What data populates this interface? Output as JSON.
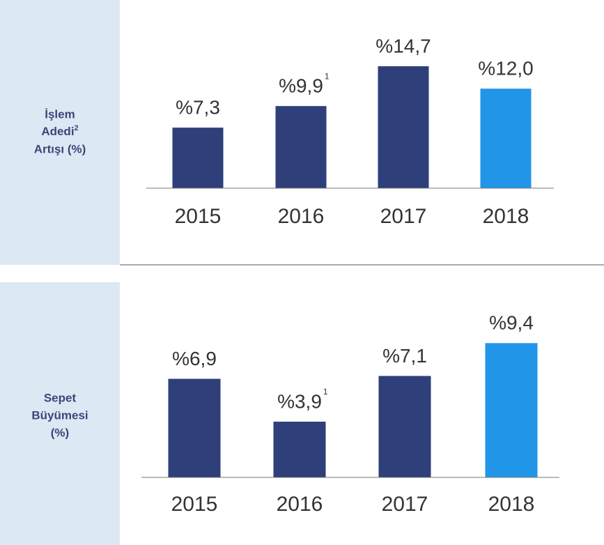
{
  "chart_data": [
    {
      "type": "bar",
      "title": [
        "İşlem",
        "Adedi",
        "Artışı (%)"
      ],
      "title_footnote": "2",
      "categories": [
        "2015",
        "2016",
        "2017",
        "2018"
      ],
      "values": [
        7.3,
        9.9,
        14.7,
        12.0
      ],
      "value_labels": [
        "%7,3",
        "%9,9",
        "%14,7",
        "%12,0"
      ],
      "value_footnotes": [
        null,
        "1",
        null,
        null
      ],
      "colors": [
        "#2e3f7a",
        "#2e3f7a",
        "#2e3f7a",
        "#2196e8"
      ]
    },
    {
      "type": "bar",
      "title": [
        "Sepet",
        "Büyümesi",
        "(%)"
      ],
      "categories": [
        "2015",
        "2016",
        "2017",
        "2018"
      ],
      "values": [
        6.9,
        3.9,
        7.1,
        9.4
      ],
      "value_labels": [
        "%6,9",
        "%3,9",
        "%7,1",
        "%9,4"
      ],
      "value_footnotes": [
        null,
        "1",
        null,
        null
      ],
      "colors": [
        "#2e3f7a",
        "#2e3f7a",
        "#2e3f7a",
        "#2196e8"
      ]
    }
  ]
}
